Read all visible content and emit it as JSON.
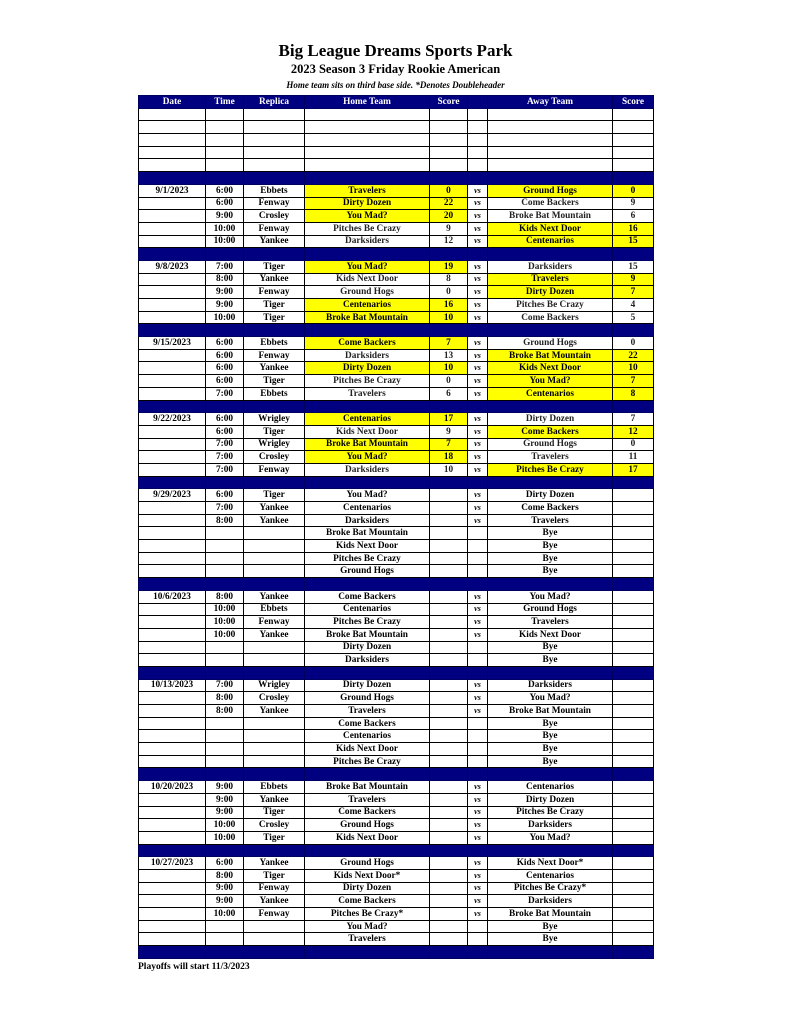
{
  "header": {
    "title": "Big League Dreams Sports Park",
    "subtitle": "2023 Season 3 Friday Rookie American",
    "note": "Home team sits on third base side.  *Denotes Doubleheader"
  },
  "colors": {
    "header_bg": "#000080",
    "winner_highlight": "#ffff00"
  },
  "columns": [
    "Date",
    "Time",
    "Replica",
    "Home Team",
    "Score",
    "",
    "Away Team",
    "Score"
  ],
  "empty_rows": 5,
  "weeks": [
    {
      "games": [
        {
          "date": "9/1/2023",
          "time": "6:00",
          "replica": "Ebbets",
          "home": "Travelers",
          "home_score": "0",
          "vs": "vs",
          "away": "Ground Hogs",
          "away_score": "0",
          "highlight": [
            "home",
            "away"
          ]
        },
        {
          "date": "",
          "time": "6:00",
          "replica": "Fenway",
          "home": "Dirty Dozen",
          "home_score": "22",
          "vs": "vs",
          "away": "Come Backers",
          "away_score": "9",
          "highlight": [
            "home"
          ]
        },
        {
          "date": "",
          "time": "9:00",
          "replica": "Crosley",
          "home": "You Mad?",
          "home_score": "20",
          "vs": "vs",
          "away": "Broke Bat Mountain",
          "away_score": "6",
          "highlight": [
            "home"
          ]
        },
        {
          "date": "",
          "time": "10:00",
          "replica": "Fenway",
          "home": "Pitches Be Crazy",
          "home_score": "9",
          "vs": "vs",
          "away": "Kids Next Door",
          "away_score": "16",
          "highlight": [
            "away"
          ]
        },
        {
          "date": "",
          "time": "10:00",
          "replica": "Yankee",
          "home": "Darksiders",
          "home_score": "12",
          "vs": "vs",
          "away": "Centenarios",
          "away_score": "15",
          "highlight": [
            "away"
          ]
        }
      ]
    },
    {
      "games": [
        {
          "date": "9/8/2023",
          "time": "7:00",
          "replica": "Tiger",
          "home": "You Mad?",
          "home_score": "19",
          "vs": "vs",
          "away": "Darksiders",
          "away_score": "15",
          "highlight": [
            "home"
          ]
        },
        {
          "date": "",
          "time": "8:00",
          "replica": "Yankee",
          "home": "Kids Next Door",
          "home_score": "8",
          "vs": "vs",
          "away": "Travelers",
          "away_score": "9",
          "highlight": [
            "away"
          ]
        },
        {
          "date": "",
          "time": "9:00",
          "replica": "Fenway",
          "home": "Ground Hogs",
          "home_score": "0",
          "vs": "vs",
          "away": "Dirty Dozen",
          "away_score": "7",
          "highlight": [
            "away"
          ]
        },
        {
          "date": "",
          "time": "9:00",
          "replica": "Tiger",
          "home": "Centenarios",
          "home_score": "16",
          "vs": "vs",
          "away": "Pitches Be Crazy",
          "away_score": "4",
          "highlight": [
            "home"
          ]
        },
        {
          "date": "",
          "time": "10:00",
          "replica": "Tiger",
          "home": "Broke Bat Mountain",
          "home_score": "10",
          "vs": "vs",
          "away": "Come Backers",
          "away_score": "5",
          "highlight": [
            "home"
          ]
        }
      ]
    },
    {
      "games": [
        {
          "date": "9/15/2023",
          "time": "6:00",
          "replica": "Ebbets",
          "home": "Come Backers",
          "home_score": "7",
          "vs": "vs",
          "away": "Ground Hogs",
          "away_score": "0",
          "highlight": [
            "home"
          ]
        },
        {
          "date": "",
          "time": "6:00",
          "replica": "Fenway",
          "home": "Darksiders",
          "home_score": "13",
          "vs": "vs",
          "away": "Broke Bat Mountain",
          "away_score": "22",
          "highlight": [
            "away"
          ]
        },
        {
          "date": "",
          "time": "6:00",
          "replica": "Yankee",
          "home": "Dirty Dozen",
          "home_score": "10",
          "vs": "vs",
          "away": "Kids Next Door",
          "away_score": "10",
          "highlight": [
            "home",
            "away"
          ]
        },
        {
          "date": "",
          "time": "6:00",
          "replica": "Tiger",
          "home": "Pitches Be Crazy",
          "home_score": "0",
          "vs": "vs",
          "away": "You Mad?",
          "away_score": "7",
          "highlight": [
            "away"
          ]
        },
        {
          "date": "",
          "time": "7:00",
          "replica": "Ebbets",
          "home": "Travelers",
          "home_score": "6",
          "vs": "vs",
          "away": "Centenarios",
          "away_score": "8",
          "highlight": [
            "away"
          ]
        }
      ]
    },
    {
      "games": [
        {
          "date": "9/22/2023",
          "time": "6:00",
          "replica": "Wrigley",
          "home": "Centenarios",
          "home_score": "17",
          "vs": "vs",
          "away": "Dirty Dozen",
          "away_score": "7",
          "highlight": [
            "home"
          ]
        },
        {
          "date": "",
          "time": "6:00",
          "replica": "Tiger",
          "home": "Kids Next Door",
          "home_score": "9",
          "vs": "vs",
          "away": "Come Backers",
          "away_score": "12",
          "highlight": [
            "away"
          ]
        },
        {
          "date": "",
          "time": "7:00",
          "replica": "Wrigley",
          "home": "Broke Bat Mountain",
          "home_score": "7",
          "vs": "vs",
          "away": "Ground Hogs",
          "away_score": "0",
          "highlight": [
            "home"
          ]
        },
        {
          "date": "",
          "time": "7:00",
          "replica": "Crosley",
          "home": "You Mad?",
          "home_score": "18",
          "vs": "vs",
          "away": "Travelers",
          "away_score": "11",
          "highlight": [
            "home"
          ]
        },
        {
          "date": "",
          "time": "7:00",
          "replica": "Fenway",
          "home": "Darksiders",
          "home_score": "10",
          "vs": "vs",
          "away": "Pitches Be Crazy",
          "away_score": "17",
          "highlight": [
            "away"
          ]
        }
      ]
    },
    {
      "games": [
        {
          "date": "9/29/2023",
          "time": "6:00",
          "replica": "Tiger",
          "home": "You Mad?",
          "home_score": "",
          "vs": "vs",
          "away": "Dirty Dozen",
          "away_score": ""
        },
        {
          "date": "",
          "time": "7:00",
          "replica": "Yankee",
          "home": "Centenarios",
          "home_score": "",
          "vs": "vs",
          "away": "Come Backers",
          "away_score": ""
        },
        {
          "date": "",
          "time": "8:00",
          "replica": "Yankee",
          "home": "Darksiders",
          "home_score": "",
          "vs": "vs",
          "away": "Travelers",
          "away_score": ""
        },
        {
          "date": "",
          "time": "",
          "replica": "",
          "home": "Broke Bat Mountain",
          "home_score": "",
          "vs": "",
          "away": "Bye",
          "away_score": ""
        },
        {
          "date": "",
          "time": "",
          "replica": "",
          "home": "Kids Next Door",
          "home_score": "",
          "vs": "",
          "away": "Bye",
          "away_score": ""
        },
        {
          "date": "",
          "time": "",
          "replica": "",
          "home": "Pitches Be Crazy",
          "home_score": "",
          "vs": "",
          "away": "Bye",
          "away_score": ""
        },
        {
          "date": "",
          "time": "",
          "replica": "",
          "home": "Ground Hogs",
          "home_score": "",
          "vs": "",
          "away": "Bye",
          "away_score": ""
        }
      ]
    },
    {
      "games": [
        {
          "date": "10/6/2023",
          "time": "8:00",
          "replica": "Yankee",
          "home": "Come Backers",
          "home_score": "",
          "vs": "vs",
          "away": "You Mad?",
          "away_score": ""
        },
        {
          "date": "",
          "time": "10:00",
          "replica": "Ebbets",
          "home": "Centenarios",
          "home_score": "",
          "vs": "vs",
          "away": "Ground Hogs",
          "away_score": ""
        },
        {
          "date": "",
          "time": "10:00",
          "replica": "Fenway",
          "home": "Pitches Be Crazy",
          "home_score": "",
          "vs": "vs",
          "away": "Travelers",
          "away_score": ""
        },
        {
          "date": "",
          "time": "10:00",
          "replica": "Yankee",
          "home": "Broke Bat Mountain",
          "home_score": "",
          "vs": "vs",
          "away": "Kids Next Door",
          "away_score": ""
        },
        {
          "date": "",
          "time": "",
          "replica": "",
          "home": "Dirty Dozen",
          "home_score": "",
          "vs": "",
          "away": "Bye",
          "away_score": ""
        },
        {
          "date": "",
          "time": "",
          "replica": "",
          "home": "Darksiders",
          "home_score": "",
          "vs": "",
          "away": "Bye",
          "away_score": ""
        }
      ]
    },
    {
      "games": [
        {
          "date": "10/13/2023",
          "time": "7:00",
          "replica": "Wrigley",
          "home": "Dirty Dozen",
          "home_score": "",
          "vs": "vs",
          "away": "Darksiders",
          "away_score": ""
        },
        {
          "date": "",
          "time": "8:00",
          "replica": "Crosley",
          "home": "Ground Hogs",
          "home_score": "",
          "vs": "vs",
          "away": "You Mad?",
          "away_score": ""
        },
        {
          "date": "",
          "time": "8:00",
          "replica": "Yankee",
          "home": "Travelers",
          "home_score": "",
          "vs": "vs",
          "away": "Broke Bat Mountain",
          "away_score": ""
        },
        {
          "date": "",
          "time": "",
          "replica": "",
          "home": "Come Backers",
          "home_score": "",
          "vs": "",
          "away": "Bye",
          "away_score": ""
        },
        {
          "date": "",
          "time": "",
          "replica": "",
          "home": "Centenarios",
          "home_score": "",
          "vs": "",
          "away": "Bye",
          "away_score": ""
        },
        {
          "date": "",
          "time": "",
          "replica": "",
          "home": "Kids Next Door",
          "home_score": "",
          "vs": "",
          "away": "Bye",
          "away_score": ""
        },
        {
          "date": "",
          "time": "",
          "replica": "",
          "home": "Pitches Be Crazy",
          "home_score": "",
          "vs": "",
          "away": "Bye",
          "away_score": ""
        }
      ]
    },
    {
      "games": [
        {
          "date": "10/20/2023",
          "time": "9:00",
          "replica": "Ebbets",
          "home": "Broke Bat Mountain",
          "home_score": "",
          "vs": "vs",
          "away": "Centenarios",
          "away_score": ""
        },
        {
          "date": "",
          "time": "9:00",
          "replica": "Yankee",
          "home": "Travelers",
          "home_score": "",
          "vs": "vs",
          "away": "Dirty Dozen",
          "away_score": ""
        },
        {
          "date": "",
          "time": "9:00",
          "replica": "Tiger",
          "home": "Come Backers",
          "home_score": "",
          "vs": "vs",
          "away": "Pitches Be Crazy",
          "away_score": ""
        },
        {
          "date": "",
          "time": "10:00",
          "replica": "Crosley",
          "home": "Ground Hogs",
          "home_score": "",
          "vs": "vs",
          "away": "Darksiders",
          "away_score": ""
        },
        {
          "date": "",
          "time": "10:00",
          "replica": "Tiger",
          "home": "Kids Next Door",
          "home_score": "",
          "vs": "vs",
          "away": "You Mad?",
          "away_score": ""
        }
      ]
    },
    {
      "games": [
        {
          "date": "10/27/2023",
          "time": "6:00",
          "replica": "Yankee",
          "home": "Ground Hogs",
          "home_score": "",
          "vs": "vs",
          "away": "Kids Next Door*",
          "away_score": ""
        },
        {
          "date": "",
          "time": "8:00",
          "replica": "Tiger",
          "home": "Kids Next Door*",
          "home_score": "",
          "vs": "vs",
          "away": "Centenarios",
          "away_score": ""
        },
        {
          "date": "",
          "time": "9:00",
          "replica": "Fenway",
          "home": "Dirty Dozen",
          "home_score": "",
          "vs": "vs",
          "away": "Pitches Be Crazy*",
          "away_score": ""
        },
        {
          "date": "",
          "time": "9:00",
          "replica": "Yankee",
          "home": "Come Backers",
          "home_score": "",
          "vs": "vs",
          "away": "Darksiders",
          "away_score": ""
        },
        {
          "date": "",
          "time": "10:00",
          "replica": "Fenway",
          "home": "Pitches Be Crazy*",
          "home_score": "",
          "vs": "vs",
          "away": "Broke Bat Mountain",
          "away_score": ""
        },
        {
          "date": "",
          "time": "",
          "replica": "",
          "home": "You Mad?",
          "home_score": "",
          "vs": "",
          "away": "Bye",
          "away_score": ""
        },
        {
          "date": "",
          "time": "",
          "replica": "",
          "home": "Travelers",
          "home_score": "",
          "vs": "",
          "away": "Bye",
          "away_score": ""
        }
      ]
    }
  ],
  "footer": "Playoffs will start 11/3/2023"
}
